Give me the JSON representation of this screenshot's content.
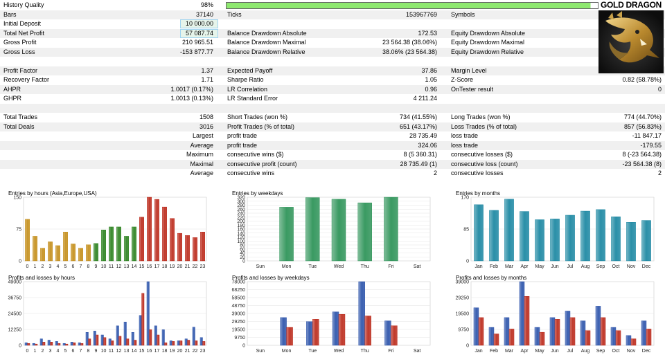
{
  "summary": {
    "history_quality": {
      "label": "History Quality",
      "value": "98%",
      "progress": 0.98
    },
    "bars": {
      "label": "Bars",
      "value": "37140"
    },
    "ticks": {
      "label": "Ticks",
      "value": "153967769"
    },
    "symbols": {
      "label": "Symbols",
      "value": ""
    },
    "initial_deposit": {
      "label": "Initial Deposit",
      "value": "10 000.00"
    },
    "total_net_profit": {
      "label": "Total Net Profit",
      "value": "57 087.74"
    },
    "balance_dd_abs": {
      "label": "Balance Drawdown Absolute",
      "value": "172.53"
    },
    "equity_dd_abs": {
      "label": "Equity Drawdown Absolute",
      "value": ""
    },
    "gross_profit": {
      "label": "Gross Profit",
      "value": "210 965.51"
    },
    "balance_dd_max": {
      "label": "Balance Drawdown Maximal",
      "value": "23 564.38 (38.06%)"
    },
    "equity_dd_max": {
      "label": "Equity Drawdown Maximal",
      "value": ""
    },
    "gross_loss": {
      "label": "Gross Loss",
      "value": "-153 877.77"
    },
    "balance_dd_rel": {
      "label": "Balance Drawdown Relative",
      "value": "38.06% (23 564.38)"
    },
    "equity_dd_rel": {
      "label": "Equity Drawdown Relative",
      "value": ""
    },
    "profit_factor": {
      "label": "Profit Factor",
      "value": "1.37"
    },
    "expected_payoff": {
      "label": "Expected Payoff",
      "value": "37.86"
    },
    "margin_level": {
      "label": "Margin Level",
      "value": ""
    },
    "recovery_factor": {
      "label": "Recovery Factor",
      "value": "1.71"
    },
    "sharpe_ratio": {
      "label": "Sharpe Ratio",
      "value": "1.05"
    },
    "z_score": {
      "label": "Z-Score",
      "value": "0.82 (58.78%)"
    },
    "ahpr": {
      "label": "AHPR",
      "value": "1.0017 (0.17%)"
    },
    "lr_correlation": {
      "label": "LR Correlation",
      "value": "0.96"
    },
    "ontester": {
      "label": "OnTester result",
      "value": "0"
    },
    "ghpr": {
      "label": "GHPR",
      "value": "1.0013 (0.13%)"
    },
    "lr_std_error": {
      "label": "LR Standard Error",
      "value": "4 211.24"
    },
    "total_trades": {
      "label": "Total Trades",
      "value": "1508"
    },
    "short_trades": {
      "label": "Short Trades (won %)",
      "value": "734 (41.55%)"
    },
    "long_trades": {
      "label": "Long Trades (won %)",
      "value": "774 (44.70%)"
    },
    "total_deals": {
      "label": "Total Deals",
      "value": "3016"
    },
    "profit_trades": {
      "label": "Profit Trades (% of total)",
      "value": "651 (43.17%)"
    },
    "loss_trades": {
      "label": "Loss Trades (% of total)",
      "value": "857 (56.83%)"
    },
    "largest": {
      "label": "Largest",
      "profit_label": "profit trade",
      "profit": "28 735.49",
      "loss_label": "loss trade",
      "loss": "-11 847.17"
    },
    "average": {
      "label": "Average",
      "profit_label": "profit trade",
      "profit": "324.06",
      "loss_label": "loss trade",
      "loss": "-179.55"
    },
    "maximum": {
      "label": "Maximum",
      "profit_label": "consecutive wins ($)",
      "profit": "8 (5 360.31)",
      "loss_label": "consecutive losses ($)",
      "loss": "8 (-23 564.38)"
    },
    "maximal": {
      "label": "Maximal",
      "profit_label": "consecutive profit (count)",
      "profit": "28 735.49 (1)",
      "loss_label": "consecutive loss (count)",
      "loss": "-23 564.38 (8)"
    },
    "average2": {
      "label": "Average",
      "profit_label": "consecutive wins",
      "profit": "2",
      "loss_label": "consecutive losses",
      "loss": "2"
    }
  },
  "logo": {
    "title": "GOLD DRAGON"
  },
  "chart_data": [
    {
      "id": "hours-entries",
      "type": "bar",
      "title": "Entries by hours (Asia,Europe,USA)",
      "categories": [
        "0",
        "1",
        "2",
        "3",
        "4",
        "5",
        "6",
        "7",
        "8",
        "9",
        "10",
        "11",
        "12",
        "13",
        "14",
        "15",
        "16",
        "17",
        "18",
        "19",
        "20",
        "21",
        "22",
        "23"
      ],
      "values": [
        98,
        58,
        30,
        45,
        36,
        68,
        40,
        30,
        38,
        41,
        73,
        80,
        80,
        58,
        80,
        103,
        150,
        145,
        127,
        100,
        65,
        60,
        55,
        68
      ],
      "yticks": [
        "0",
        "75",
        "150"
      ],
      "ylim": [
        0,
        150
      ],
      "colors": [
        "#c8962a",
        "#c8962a",
        "#c8962a",
        "#c8962a",
        "#c8962a",
        "#c8962a",
        "#c8962a",
        "#c8962a",
        "#c8962a",
        "#3a8a2e",
        "#3a8a2e",
        "#3a8a2e",
        "#3a8a2e",
        "#3a8a2e",
        "#3a8a2e",
        "#c0392b",
        "#c0392b",
        "#c0392b",
        "#c0392b",
        "#c0392b",
        "#c0392b",
        "#c0392b",
        "#c0392b",
        "#c0392b"
      ]
    },
    {
      "id": "weekday-entries",
      "type": "bar",
      "title": "Entries by weekdays",
      "categories": [
        "Sun",
        "Mon",
        "Tue",
        "Wed",
        "Thu",
        "Fri",
        "Sat"
      ],
      "values": [
        0,
        270,
        318,
        310,
        292,
        320,
        0
      ],
      "yticks": [
        "0",
        "20",
        "40",
        "60",
        "80",
        "100",
        "120",
        "140",
        "160",
        "180",
        "200",
        "220",
        "240",
        "260",
        "280",
        "300",
        "320"
      ],
      "ylim": [
        0,
        320
      ],
      "colors": [
        "#3a9a62"
      ]
    },
    {
      "id": "month-entries",
      "type": "bar",
      "title": "Entries by months",
      "categories": [
        "Jan",
        "Feb",
        "Mar",
        "Apr",
        "May",
        "Jun",
        "Jul",
        "Aug",
        "Sep",
        "Oct",
        "Nov",
        "Dec"
      ],
      "values": [
        150,
        135,
        165,
        132,
        110,
        112,
        122,
        133,
        137,
        118,
        103,
        108
      ],
      "yticks": [
        "0",
        "85",
        "170"
      ],
      "ylim": [
        0,
        170
      ],
      "colors": [
        "#2a8fa8"
      ]
    },
    {
      "id": "hours-pl",
      "type": "bar",
      "title": "Profits and losses by hours",
      "categories": [
        "0",
        "1",
        "2",
        "3",
        "4",
        "5",
        "6",
        "7",
        "8",
        "9",
        "10",
        "11",
        "12",
        "13",
        "14",
        "15",
        "16",
        "17",
        "18",
        "19",
        "20",
        "21",
        "22",
        "23"
      ],
      "series": [
        {
          "values": [
            2000,
            1500,
            5000,
            4000,
            3000,
            1500,
            2500,
            2000,
            10000,
            11000,
            8000,
            5000,
            15000,
            18000,
            10000,
            23000,
            49000,
            15000,
            12000,
            3500,
            3500,
            5000,
            14000,
            6000
          ]
        },
        {
          "values": [
            1500,
            1000,
            2500,
            2500,
            1500,
            1000,
            2000,
            1500,
            5000,
            8000,
            6000,
            3500,
            7000,
            5000,
            4000,
            40000,
            12000,
            8000,
            2000,
            3000,
            3500,
            4000,
            3500,
            3000
          ]
        }
      ],
      "yticks": [
        "0",
        "12250",
        "24500",
        "36750",
        "49000"
      ],
      "ylim": [
        0,
        49000
      ],
      "colors": [
        "#3a5fb0",
        "#c0392b"
      ]
    },
    {
      "id": "weekday-pl",
      "type": "bar",
      "title": "Profits and losses by weekdays",
      "categories": [
        "Sun",
        "Mon",
        "Tue",
        "Wed",
        "Thu",
        "Fri",
        "Sat"
      ],
      "series": [
        {
          "values": [
            0,
            34000,
            29000,
            41000,
            78000,
            30000,
            0
          ]
        },
        {
          "values": [
            0,
            22000,
            32000,
            38000,
            36000,
            24000,
            0
          ]
        }
      ],
      "yticks": [
        "0",
        "9750",
        "19500",
        "29250",
        "39000",
        "48750",
        "58500",
        "68250",
        "78000"
      ],
      "ylim": [
        0,
        78000
      ],
      "colors": [
        "#3a5fb0",
        "#c0392b"
      ]
    },
    {
      "id": "month-pl",
      "type": "bar",
      "title": "Profits and losses by months",
      "categories": [
        "Jan",
        "Feb",
        "Mar",
        "Apr",
        "May",
        "Jun",
        "Jul",
        "Aug",
        "Sep",
        "Oct",
        "Nov",
        "Dec"
      ],
      "series": [
        {
          "values": [
            23000,
            11000,
            17000,
            39000,
            11000,
            17000,
            21000,
            15000,
            24000,
            11000,
            6000,
            15000
          ]
        },
        {
          "values": [
            17000,
            7000,
            10000,
            30000,
            8000,
            16000,
            17000,
            9000,
            17000,
            9000,
            4000,
            10000
          ]
        }
      ],
      "yticks": [
        "0",
        "9750",
        "19500",
        "29250",
        "39000"
      ],
      "ylim": [
        0,
        39000
      ],
      "colors": [
        "#3a5fb0",
        "#c0392b"
      ]
    }
  ]
}
